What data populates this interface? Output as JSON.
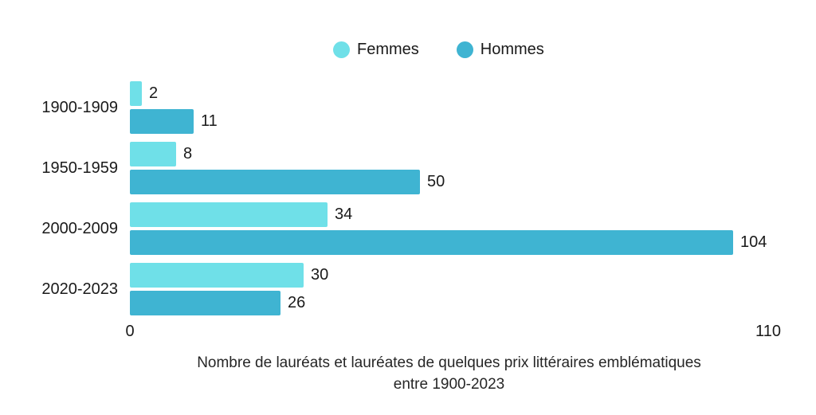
{
  "colors": {
    "femmes": "#6FE0E8",
    "hommes": "#3FB4D2",
    "label_text": "#1a1a1a",
    "title_text": "#262626",
    "background": "#ffffff"
  },
  "legend": {
    "items": [
      {
        "label": "Femmes",
        "swatch": "femmes-swatch-icon",
        "color": "#6FE0E8"
      },
      {
        "label": "Hommes",
        "swatch": "hommes-swatch-icon",
        "color": "#3FB4D2"
      }
    ]
  },
  "axis": {
    "min_label": "0",
    "max_label": "110"
  },
  "title": {
    "line1": "Nombre de lauréats et lauréates de quelques prix littéraires emblématiques",
    "line2": "entre 1900-2023"
  },
  "chart_data": {
    "type": "bar",
    "orientation": "horizontal",
    "title": "Nombre de lauréats et lauréates de quelques prix littéraires emblématiques entre 1900-2023",
    "categories": [
      "1900-1909",
      "1950-1959",
      "2000-2009",
      "2020-2023"
    ],
    "series": [
      {
        "name": "Femmes",
        "color": "#6FE0E8",
        "values": [
          2,
          8,
          34,
          30
        ]
      },
      {
        "name": "Hommes",
        "color": "#3FB4D2",
        "values": [
          11,
          50,
          104,
          26
        ]
      }
    ],
    "xlim": [
      0,
      110
    ],
    "value_labels": true,
    "legend_position": "top-center",
    "grid": false,
    "axis_line": false
  }
}
